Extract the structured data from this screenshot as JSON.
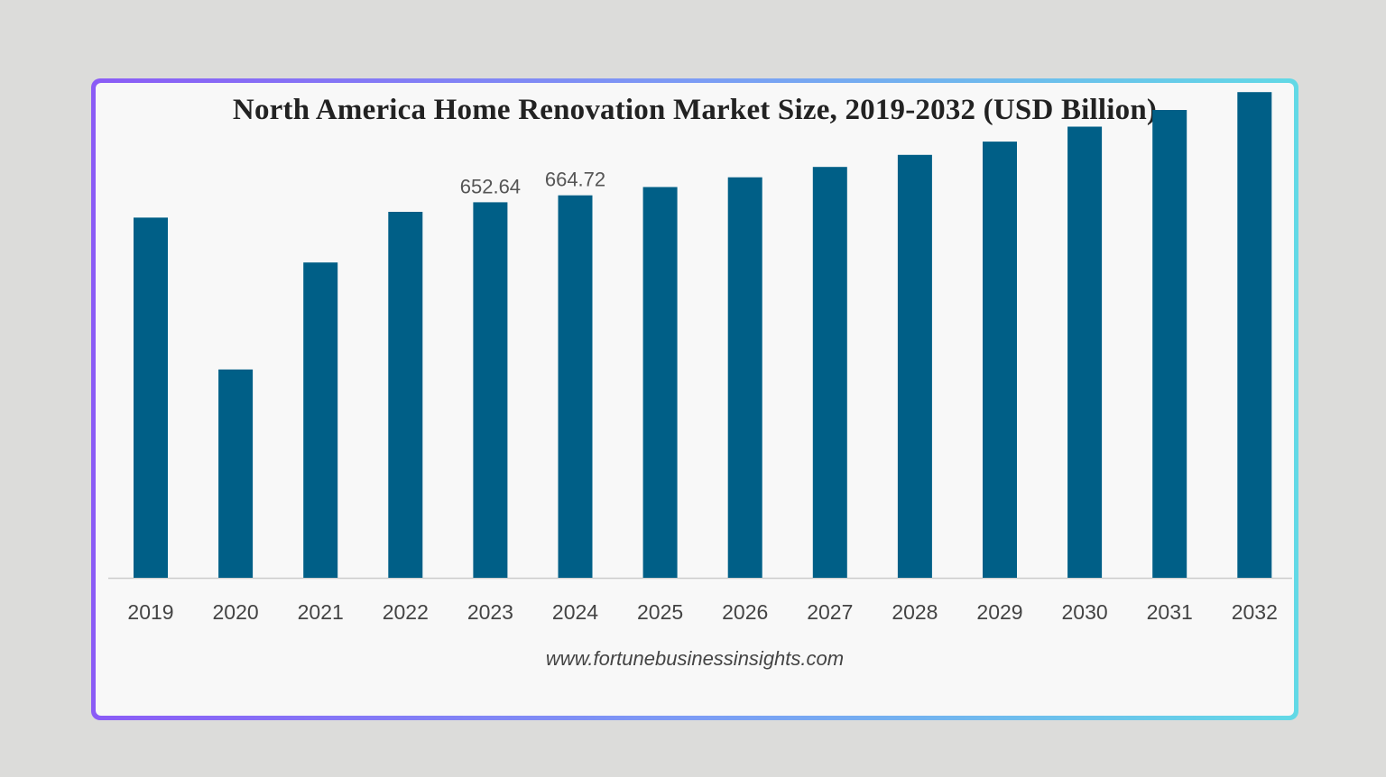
{
  "chart_data": {
    "type": "bar",
    "title": "North America Home Renovation Market Size, 2019-2032 (USD Billion)",
    "source": "www.fortunebusinessinsights.com",
    "categories": [
      "2019",
      "2020",
      "2021",
      "2022",
      "2023",
      "2024",
      "2025",
      "2026",
      "2027",
      "2028",
      "2029",
      "2030",
      "2031",
      "2032"
    ],
    "values": [
      626,
      362,
      548,
      636,
      652.64,
      664.72,
      679,
      696,
      714,
      735,
      758,
      784,
      813,
      844
    ],
    "data_labels": [
      {
        "index": 4,
        "text": "652.64"
      },
      {
        "index": 5,
        "text": "664.72"
      }
    ],
    "xlabel": "",
    "ylabel": "",
    "ylim": [
      0,
      860
    ],
    "grid": false,
    "legend": "none",
    "bar_color": "#005f87",
    "axis_color": "#cccccc"
  }
}
